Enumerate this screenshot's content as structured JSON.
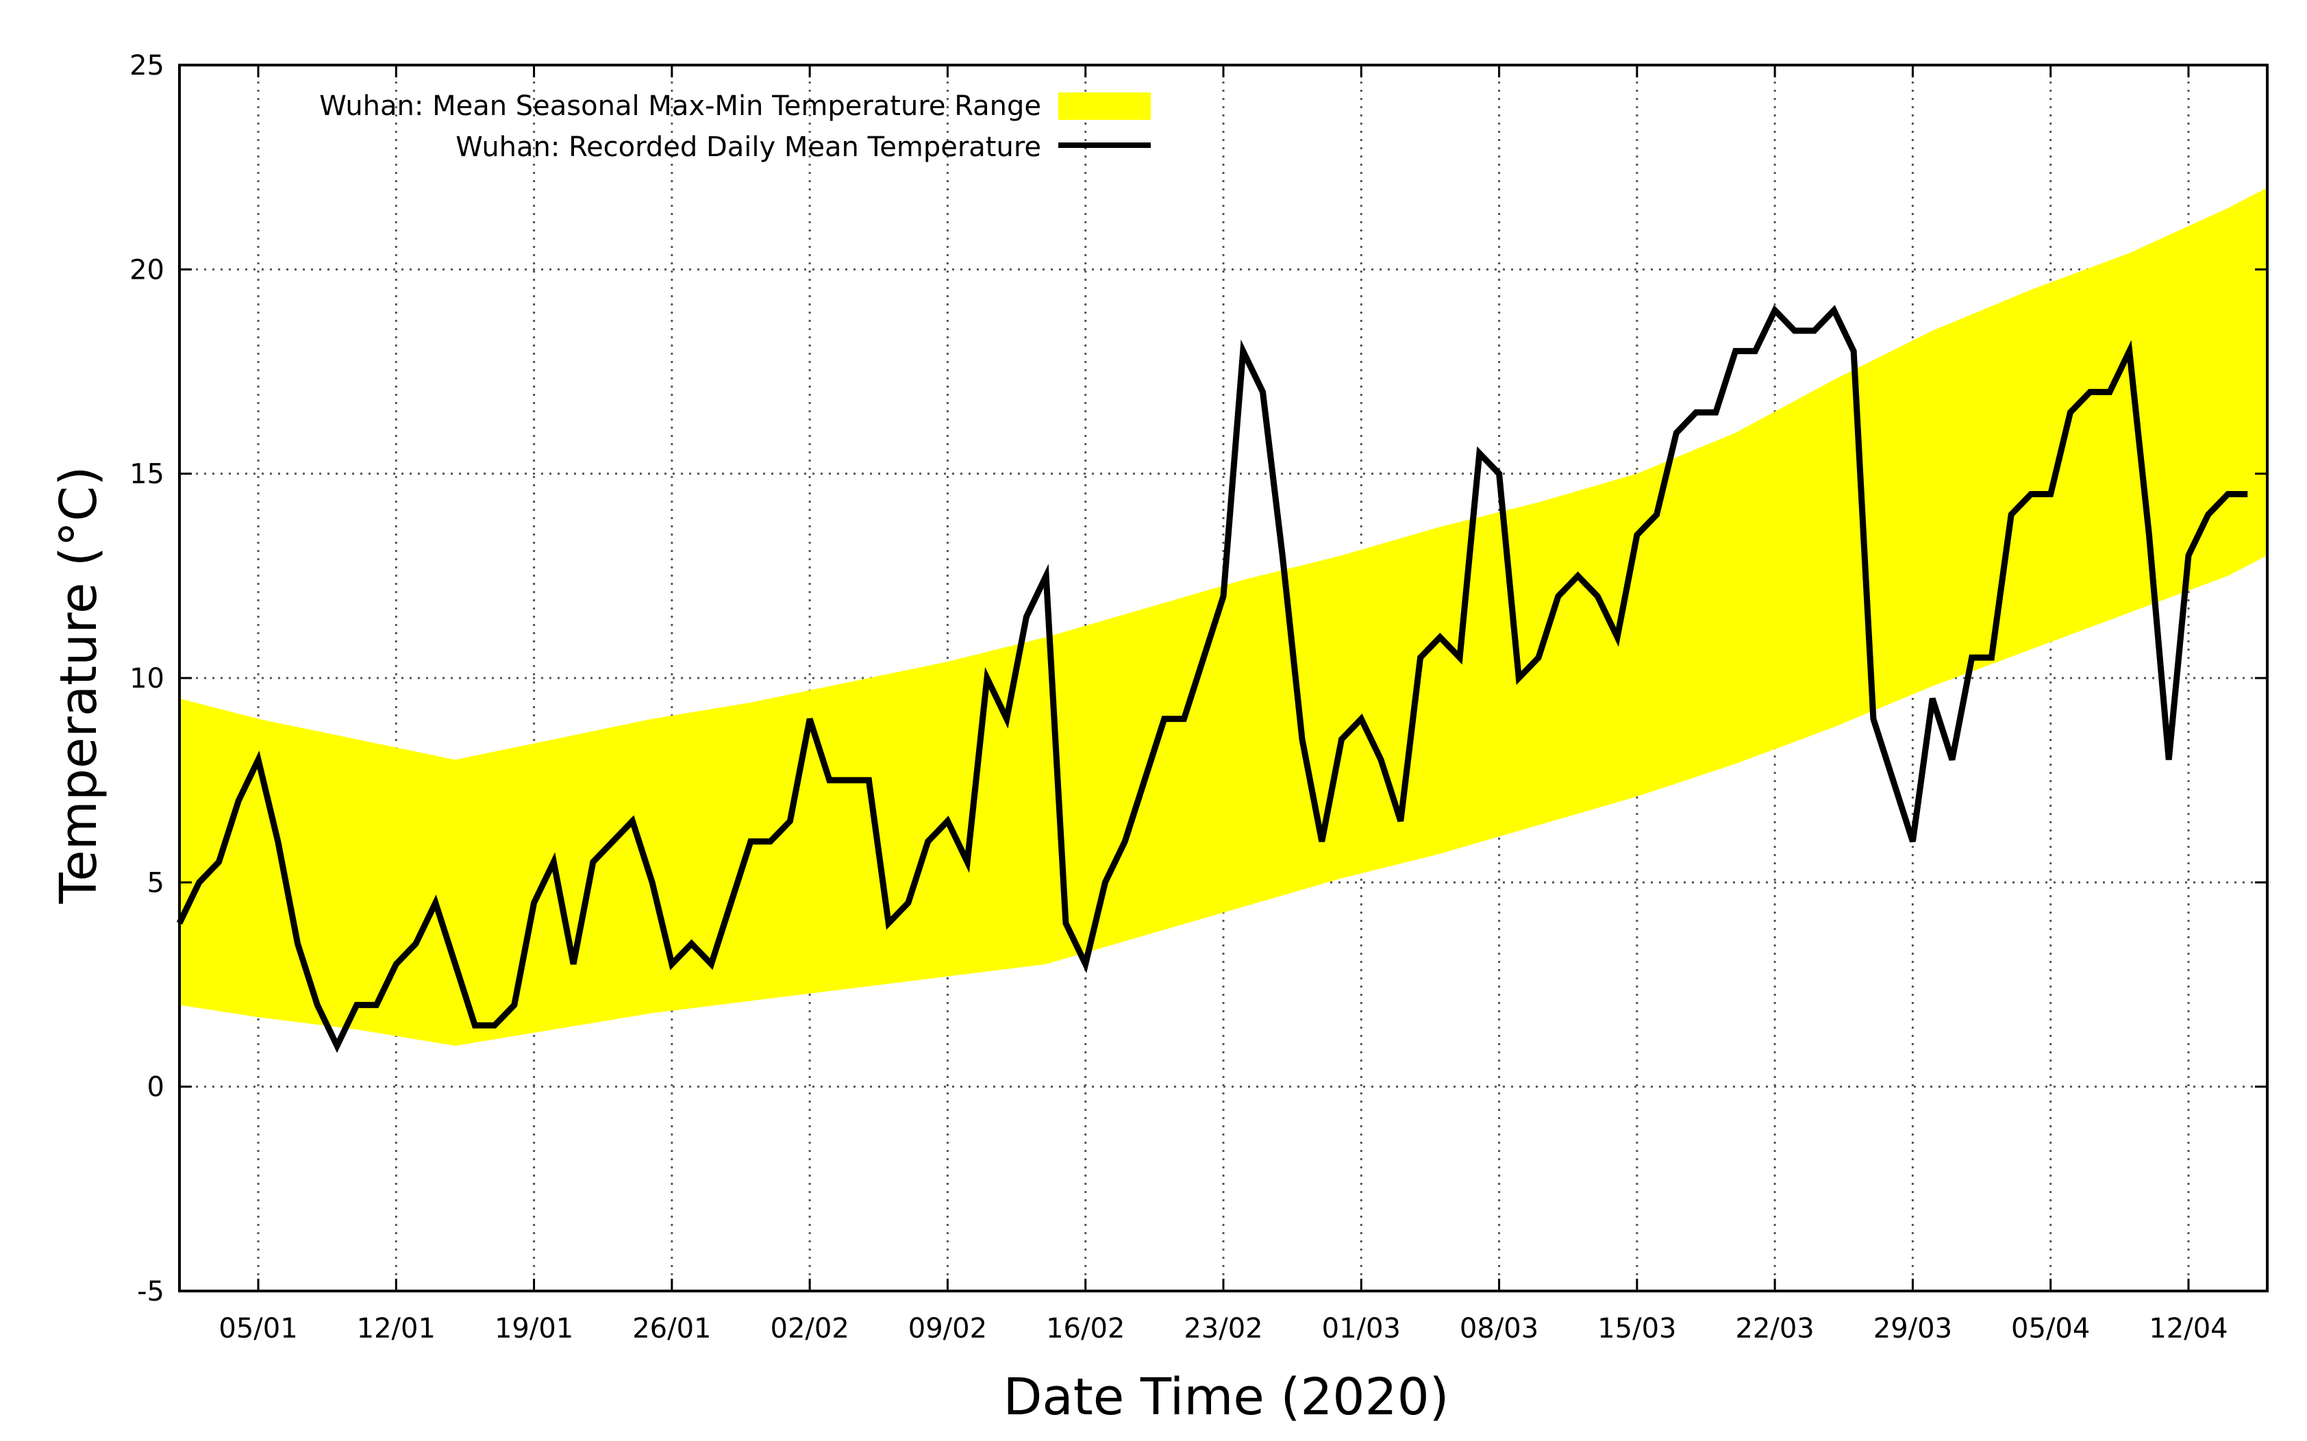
{
  "chart_data": {
    "type": "line",
    "title": "",
    "xlabel": "Date Time (2020)",
    "ylabel": "Temperature (°C)",
    "ylim": [
      -5,
      25
    ],
    "xlim_day": [
      1,
      107
    ],
    "grid": true,
    "legend_position": "top-left",
    "yticks": [
      -5,
      0,
      5,
      10,
      15,
      20,
      25
    ],
    "xticks": [
      {
        "day": 5,
        "label": "05/01"
      },
      {
        "day": 12,
        "label": "12/01"
      },
      {
        "day": 19,
        "label": "19/01"
      },
      {
        "day": 26,
        "label": "26/01"
      },
      {
        "day": 33,
        "label": "02/02"
      },
      {
        "day": 40,
        "label": "09/02"
      },
      {
        "day": 47,
        "label": "16/02"
      },
      {
        "day": 54,
        "label": "23/02"
      },
      {
        "day": 61,
        "label": "01/03"
      },
      {
        "day": 68,
        "label": "08/03"
      },
      {
        "day": 75,
        "label": "15/03"
      },
      {
        "day": 82,
        "label": "22/03"
      },
      {
        "day": 89,
        "label": "29/03"
      },
      {
        "day": 96,
        "label": "05/04"
      },
      {
        "day": 103,
        "label": "12/04"
      }
    ],
    "series": [
      {
        "name": "Wuhan: Mean Seasonal Max-Min Temperature Range",
        "kind": "band",
        "color": "#ffff00",
        "x": [
          1,
          5,
          10,
          15,
          20,
          25,
          30,
          35,
          40,
          45,
          50,
          55,
          60,
          65,
          70,
          75,
          80,
          85,
          90,
          95,
          100,
          105,
          107
        ],
        "upper": [
          9.5,
          9.0,
          8.5,
          8.0,
          8.5,
          9.0,
          9.4,
          9.9,
          10.4,
          11.0,
          11.7,
          12.4,
          13.0,
          13.7,
          14.3,
          15.0,
          16.0,
          17.3,
          18.5,
          19.5,
          20.4,
          21.5,
          22.0
        ],
        "lower": [
          2.0,
          1.7,
          1.4,
          1.0,
          1.4,
          1.8,
          2.1,
          2.4,
          2.7,
          3.0,
          3.7,
          4.4,
          5.1,
          5.7,
          6.4,
          7.1,
          7.9,
          8.8,
          9.8,
          10.7,
          11.6,
          12.5,
          13.0
        ]
      },
      {
        "name": "Wuhan: Recorded Daily Mean Temperature",
        "kind": "line",
        "color": "#000000",
        "x": [
          1,
          2,
          3,
          4,
          5,
          6,
          7,
          8,
          9,
          10,
          11,
          12,
          13,
          14,
          15,
          16,
          17,
          18,
          19,
          20,
          21,
          22,
          23,
          24,
          25,
          26,
          27,
          28,
          29,
          30,
          31,
          32,
          33,
          34,
          35,
          36,
          37,
          38,
          39,
          40,
          41,
          42,
          43,
          44,
          45,
          46,
          47,
          48,
          49,
          50,
          51,
          52,
          53,
          54,
          55,
          56,
          57,
          58,
          59,
          60,
          61,
          62,
          63,
          64,
          65,
          66,
          67,
          68,
          69,
          70,
          71,
          72,
          73,
          74,
          75,
          76,
          77,
          78,
          79,
          80,
          81,
          82,
          83,
          84,
          85,
          86,
          87,
          88,
          89,
          90,
          91,
          92,
          93,
          94,
          95,
          96,
          97,
          98,
          99,
          100,
          101,
          102,
          103,
          104,
          105,
          106
        ],
        "values": [
          4.0,
          5.0,
          5.5,
          7.0,
          8.0,
          6.0,
          3.5,
          2.0,
          1.0,
          2.0,
          2.0,
          3.0,
          3.5,
          4.5,
          3.0,
          1.5,
          1.5,
          2.0,
          4.5,
          5.5,
          3.0,
          5.5,
          6.0,
          6.5,
          5.0,
          3.0,
          3.5,
          3.0,
          4.5,
          6.0,
          6.0,
          6.5,
          9.0,
          7.5,
          7.5,
          7.5,
          4.0,
          4.5,
          6.0,
          6.5,
          5.5,
          10.0,
          9.0,
          11.5,
          12.5,
          4.0,
          3.0,
          5.0,
          6.0,
          7.5,
          9.0,
          9.0,
          10.5,
          12.0,
          18.0,
          17.0,
          13.0,
          8.5,
          6.0,
          8.5,
          9.0,
          8.0,
          6.5,
          10.5,
          11.0,
          10.5,
          15.5,
          15.0,
          10.0,
          10.5,
          12.0,
          12.5,
          12.0,
          11.0,
          13.5,
          14.0,
          16.0,
          16.5,
          16.5,
          18.0,
          18.0,
          19.0,
          18.5,
          18.5,
          19.0,
          18.0,
          9.0,
          7.5,
          6.0,
          9.5,
          8.0,
          10.5,
          10.5,
          14.0,
          14.5,
          14.5,
          16.5,
          17.0,
          17.0,
          18.0,
          13.5,
          8.0,
          13.0,
          14.0,
          14.5,
          14.5
        ]
      }
    ]
  }
}
